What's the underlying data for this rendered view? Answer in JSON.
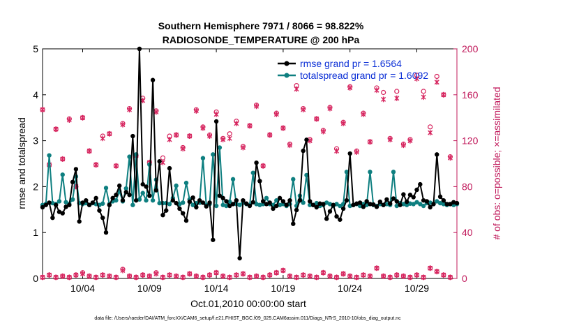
{
  "chart_data": {
    "type": "line",
    "title": "Southern Hemisphere 7971 / 8066 = 98.822%",
    "subtitle": "RADIOSONDE_TEMPERATURE @ 200 hPa",
    "xlabel": "Oct.01,2010 00:00:00 start",
    "ylabel": "rmse and totalspread",
    "y2label": "# of obs: o=possible; ×=assimilated",
    "footnote": "data file: /Users/raeder/DAI/ATM_forcXX/CAM6_setup/f.e21.FHIST_BGC.f09_025.CAM6assim.011/Diags_NTrS_2010-10/obs_diag_output.nc",
    "xticks": [
      {
        "day": 4,
        "label": "10/04"
      },
      {
        "day": 9,
        "label": "10/09"
      },
      {
        "day": 14,
        "label": "10/14"
      },
      {
        "day": 19,
        "label": "10/19"
      },
      {
        "day": 24,
        "label": "10/24"
      },
      {
        "day": 29,
        "label": "10/29"
      }
    ],
    "xlim": [
      1,
      32
    ],
    "ylim": [
      0,
      5
    ],
    "yticks": [
      "0",
      "1",
      "2",
      "3",
      "4",
      "5"
    ],
    "y2lim": [
      0,
      200
    ],
    "y2ticks": [
      "0",
      "40",
      "80",
      "120",
      "160",
      "200"
    ],
    "colors": {
      "rmse": "#000000",
      "spread": "#0e7f80",
      "obs": "#d6245e",
      "axis2": "#c0185a",
      "legend_text": "#0b2fd6"
    },
    "legend": {
      "placement": "top-right",
      "entries": [
        "rmse grand pr = 1.6564",
        "totalspread grand pr = 1.6092"
      ]
    },
    "series": [
      {
        "name": "rmse",
        "x": [
          1.0,
          1.25,
          1.5,
          1.75,
          2.0,
          2.25,
          2.5,
          2.75,
          3.0,
          3.25,
          3.5,
          3.75,
          4.0,
          4.25,
          4.5,
          4.75,
          5.0,
          5.25,
          5.5,
          5.75,
          6.0,
          6.25,
          6.5,
          6.75,
          7.0,
          7.25,
          7.5,
          7.75,
          8.0,
          8.25,
          8.5,
          8.75,
          9.0,
          9.25,
          9.5,
          9.75,
          10.0,
          10.25,
          10.5,
          10.75,
          11.0,
          11.25,
          11.5,
          11.75,
          12.0,
          12.25,
          12.5,
          12.75,
          13.0,
          13.25,
          13.5,
          13.75,
          14.0,
          14.25,
          14.5,
          14.75,
          15.0,
          15.25,
          15.5,
          15.75,
          16.0,
          16.25,
          16.5,
          16.75,
          17.0,
          17.25,
          17.5,
          17.75,
          18.0,
          18.25,
          18.5,
          18.75,
          19.0,
          19.25,
          19.5,
          19.75,
          20.0,
          20.25,
          20.5,
          20.75,
          21.0,
          21.25,
          21.5,
          21.75,
          22.0,
          22.25,
          22.5,
          22.75,
          23.0,
          23.25,
          23.5,
          23.75,
          24.0,
          24.25,
          24.5,
          24.75,
          25.0,
          25.25,
          25.5,
          25.75,
          26.0,
          26.25,
          26.5,
          26.75,
          27.0,
          27.25,
          27.5,
          27.75,
          28.0,
          28.25,
          28.5,
          28.75,
          29.0,
          29.25,
          29.5,
          29.75,
          30.0,
          30.25,
          30.5,
          30.75,
          31.0,
          31.25,
          31.5,
          31.75,
          32.0
        ],
        "values": [
          1.55,
          1.6,
          1.65,
          1.32,
          1.6,
          1.45,
          1.42,
          1.56,
          1.6,
          2.1,
          2.38,
          1.24,
          1.65,
          1.7,
          1.6,
          1.65,
          1.75,
          1.48,
          1.32,
          1.0,
          1.6,
          1.75,
          1.82,
          2.02,
          1.7,
          1.88,
          1.82,
          3.1,
          1.7,
          5.0,
          2.05,
          2.0,
          1.8,
          4.32,
          1.92,
          2.55,
          1.38,
          1.48,
          2.4,
          1.7,
          1.64,
          1.52,
          1.42,
          1.26,
          1.67,
          1.76,
          1.55,
          1.7,
          1.65,
          1.57,
          1.65,
          0.84,
          3.42,
          1.8,
          1.75,
          1.68,
          1.58,
          1.62,
          1.7,
          0.44,
          1.7,
          1.63,
          1.58,
          1.66,
          2.52,
          2.12,
          1.68,
          1.62,
          1.65,
          1.52,
          1.58,
          1.75,
          1.68,
          1.6,
          1.7,
          1.19,
          1.49,
          1.7,
          2.78,
          3.02,
          1.68,
          1.6,
          1.55,
          1.63,
          1.62,
          1.3,
          1.46,
          1.6,
          1.35,
          1.28,
          1.52,
          1.7,
          2.72,
          1.6,
          1.63,
          1.65,
          1.56,
          1.68,
          1.62,
          1.61,
          1.56,
          1.67,
          1.6,
          1.72,
          1.63,
          1.74,
          1.68,
          1.6,
          1.83,
          1.67,
          1.82,
          1.77,
          1.93,
          2.05,
          1.7,
          1.68,
          1.55,
          1.62,
          2.7,
          1.78,
          1.7,
          1.62,
          1.62,
          1.66,
          1.64
        ]
      },
      {
        "name": "totalspread",
        "x": [
          1.0,
          1.25,
          1.5,
          1.75,
          2.0,
          2.25,
          2.5,
          2.75,
          3.0,
          3.25,
          3.5,
          3.75,
          4.0,
          4.25,
          4.5,
          4.75,
          5.0,
          5.25,
          5.5,
          5.75,
          6.0,
          6.25,
          6.5,
          6.75,
          7.0,
          7.25,
          7.5,
          7.75,
          8.0,
          8.25,
          8.5,
          8.75,
          9.0,
          9.25,
          9.5,
          9.75,
          10.0,
          10.25,
          10.5,
          10.75,
          11.0,
          11.25,
          11.5,
          11.75,
          12.0,
          12.25,
          12.5,
          12.75,
          13.0,
          13.25,
          13.5,
          13.75,
          14.0,
          14.25,
          14.5,
          14.75,
          15.0,
          15.25,
          15.5,
          15.75,
          16.0,
          16.25,
          16.5,
          16.75,
          17.0,
          17.25,
          17.5,
          17.75,
          18.0,
          18.25,
          18.5,
          18.75,
          19.0,
          19.25,
          19.5,
          19.75,
          20.0,
          20.25,
          20.5,
          20.75,
          21.0,
          21.25,
          21.5,
          21.75,
          22.0,
          22.25,
          22.5,
          22.75,
          23.0,
          23.25,
          23.5,
          23.75,
          24.0,
          24.25,
          24.5,
          24.75,
          25.0,
          25.25,
          25.5,
          25.75,
          26.0,
          26.25,
          26.5,
          26.75,
          27.0,
          27.25,
          27.5,
          27.75,
          28.0,
          28.25,
          28.5,
          28.75,
          29.0,
          29.25,
          29.5,
          29.75,
          30.0,
          30.25,
          30.5,
          30.75,
          31.0,
          31.25,
          31.5,
          31.75,
          32.0
        ],
        "values": [
          1.6,
          1.62,
          2.68,
          1.64,
          1.62,
          1.68,
          2.26,
          1.66,
          1.62,
          1.72,
          2.22,
          1.64,
          1.62,
          1.64,
          1.6,
          1.64,
          1.62,
          1.6,
          1.63,
          1.97,
          1.62,
          1.68,
          1.7,
          1.9,
          1.68,
          1.96,
          2.65,
          1.6,
          2.7,
          1.72,
          1.86,
          1.7,
          2.48,
          1.7,
          2.15,
          1.64,
          1.64,
          1.64,
          1.62,
          1.75,
          2.02,
          1.62,
          1.65,
          2.08,
          1.72,
          1.6,
          1.64,
          1.65,
          2.62,
          1.6,
          1.62,
          2.7,
          1.58,
          2.85,
          1.6,
          1.58,
          1.67,
          2.16,
          1.62,
          1.6,
          1.65,
          1.62,
          1.6,
          2.3,
          1.62,
          1.6,
          1.62,
          1.75,
          1.62,
          1.6,
          1.7,
          1.6,
          1.62,
          1.58,
          1.62,
          2.16,
          1.58,
          1.8,
          1.65,
          2.25,
          1.6,
          1.6,
          1.64,
          1.58,
          1.6,
          1.65,
          1.62,
          1.58,
          1.62,
          1.58,
          1.62,
          2.32,
          1.58,
          1.6,
          1.62,
          1.58,
          1.62,
          1.6,
          2.32,
          1.6,
          1.58,
          1.62,
          1.6,
          1.62,
          1.6,
          2.32,
          1.58,
          1.64,
          1.62,
          1.6,
          1.63,
          1.62,
          1.66,
          1.62,
          1.58,
          1.64,
          1.65,
          1.62,
          1.68,
          1.64,
          1.62,
          1.6,
          1.62,
          1.6,
          1.62
        ]
      },
      {
        "name": "obs possible (upper)",
        "marker": "o",
        "x": [
          1.0,
          1.5,
          2.0,
          2.5,
          3.0,
          3.5,
          4.0,
          4.5,
          5.0,
          5.5,
          6.0,
          6.5,
          7.0,
          7.5,
          8.0,
          8.5,
          9.0,
          9.5,
          10.0,
          10.5,
          11.0,
          11.5,
          12.0,
          12.5,
          13.0,
          13.5,
          14.0,
          14.5,
          15.0,
          15.5,
          16.0,
          16.5,
          17.0,
          17.5,
          18.0,
          18.5,
          19.0,
          19.5,
          20.0,
          20.5,
          21.0,
          21.5,
          22.0,
          22.5,
          23.0,
          23.5,
          24.0,
          24.5,
          25.0,
          25.5,
          26.0,
          26.5,
          27.0,
          27.5,
          28.0,
          28.5,
          29.0,
          29.5,
          30.0,
          30.5,
          31.0,
          31.5
        ],
        "values": [
          147,
          99,
          130,
          104,
          139,
          80,
          140,
          111,
          99,
          124,
          126,
          98,
          135,
          148,
          107,
          157,
          101,
          146,
          105,
          124,
          125,
          114,
          124,
          147,
          132,
          125,
          145,
          122,
          126,
          137,
          115,
          133,
          151,
          98,
          125,
          144,
          131,
          117,
          168,
          148,
          121,
          139,
          129,
          149,
          113,
          136,
          167,
          111,
          144,
          119,
          166,
          162,
          122,
          163,
          117,
          121,
          177,
          163,
          132,
          176,
          160,
          106
        ]
      },
      {
        "name": "obs assimilated (upper)",
        "marker": "x",
        "x": [
          1.0,
          1.5,
          2.0,
          2.5,
          3.0,
          3.5,
          4.0,
          4.5,
          5.0,
          5.5,
          6.0,
          6.5,
          7.0,
          7.5,
          8.0,
          8.5,
          9.0,
          9.5,
          10.0,
          10.5,
          11.0,
          11.5,
          12.0,
          12.5,
          13.0,
          13.5,
          14.0,
          14.5,
          15.0,
          15.5,
          16.0,
          16.5,
          17.0,
          17.5,
          18.0,
          18.5,
          19.0,
          19.5,
          20.0,
          20.5,
          21.0,
          21.5,
          22.0,
          22.5,
          23.0,
          23.5,
          24.0,
          24.5,
          25.0,
          25.5,
          26.0,
          26.5,
          27.0,
          27.5,
          28.0,
          28.5,
          29.0,
          29.5,
          30.0,
          30.5,
          31.0,
          31.5
        ],
        "values": [
          147,
          99,
          130,
          104,
          138,
          80,
          140,
          111,
          99,
          122,
          126,
          98,
          134,
          147,
          107,
          155,
          101,
          145,
          101,
          121,
          125,
          113,
          124,
          146,
          131,
          124,
          143,
          121,
          122,
          135,
          114,
          133,
          150,
          98,
          125,
          143,
          131,
          116,
          165,
          147,
          120,
          139,
          128,
          148,
          111,
          135,
          166,
          110,
          143,
          119,
          164,
          156,
          121,
          157,
          116,
          120,
          174,
          158,
          127,
          171,
          160,
          105
        ]
      },
      {
        "name": "obs possible (lower)",
        "marker": "o",
        "x": [
          1.0,
          1.5,
          2.0,
          2.5,
          3.0,
          3.5,
          4.0,
          4.5,
          5.0,
          5.5,
          6.0,
          6.5,
          7.0,
          7.5,
          8.0,
          8.5,
          9.0,
          9.5,
          10.0,
          10.5,
          11.0,
          11.5,
          12.0,
          12.5,
          13.0,
          13.5,
          14.0,
          14.5,
          15.0,
          15.5,
          16.0,
          16.5,
          17.0,
          17.5,
          18.0,
          18.5,
          19.0,
          19.5,
          20.0,
          20.5,
          21.0,
          21.5,
          22.0,
          22.5,
          23.0,
          23.5,
          24.0,
          24.5,
          25.0,
          25.5,
          26.0,
          26.5,
          27.0,
          27.5,
          28.0,
          28.5,
          29.0,
          29.5,
          30.0,
          30.5,
          31.0,
          31.5
        ],
        "values": [
          1,
          3,
          1,
          2,
          1,
          3,
          5,
          2,
          1,
          3,
          2,
          1,
          8,
          2,
          1,
          3,
          2,
          5,
          1,
          3,
          2,
          1,
          4,
          2,
          1,
          3,
          5,
          2,
          1,
          3,
          4,
          1,
          2,
          1,
          3,
          5,
          7,
          2,
          1,
          3,
          2,
          1,
          5,
          2,
          1,
          4,
          2,
          1,
          3,
          2,
          9,
          2,
          1,
          3,
          2,
          1,
          3,
          1,
          9,
          6,
          3,
          1
        ]
      },
      {
        "name": "obs assimilated (lower)",
        "marker": "x",
        "x": [
          1.0,
          1.5,
          2.0,
          2.5,
          3.0,
          3.5,
          4.0,
          4.5,
          5.0,
          5.5,
          6.0,
          6.5,
          7.0,
          7.5,
          8.0,
          8.5,
          9.0,
          9.5,
          10.0,
          10.5,
          11.0,
          11.5,
          12.0,
          12.5,
          13.0,
          13.5,
          14.0,
          14.5,
          15.0,
          15.5,
          16.0,
          16.5,
          17.0,
          17.5,
          18.0,
          18.5,
          19.0,
          19.5,
          20.0,
          20.5,
          21.0,
          21.5,
          22.0,
          22.5,
          23.0,
          23.5,
          24.0,
          24.5,
          25.0,
          25.5,
          26.0,
          26.5,
          27.0,
          27.5,
          28.0,
          28.5,
          29.0,
          29.5,
          30.0,
          30.5,
          31.0,
          31.5
        ],
        "values": [
          1,
          3,
          1,
          2,
          1,
          3,
          4,
          2,
          1,
          3,
          2,
          1,
          7,
          2,
          1,
          3,
          2,
          4,
          1,
          3,
          2,
          1,
          4,
          2,
          1,
          3,
          5,
          2,
          1,
          3,
          4,
          1,
          2,
          1,
          3,
          5,
          7,
          2,
          1,
          3,
          2,
          1,
          5,
          2,
          1,
          4,
          2,
          1,
          3,
          2,
          9,
          2,
          1,
          3,
          2,
          1,
          3,
          1,
          9,
          6,
          3,
          1
        ]
      }
    ]
  }
}
